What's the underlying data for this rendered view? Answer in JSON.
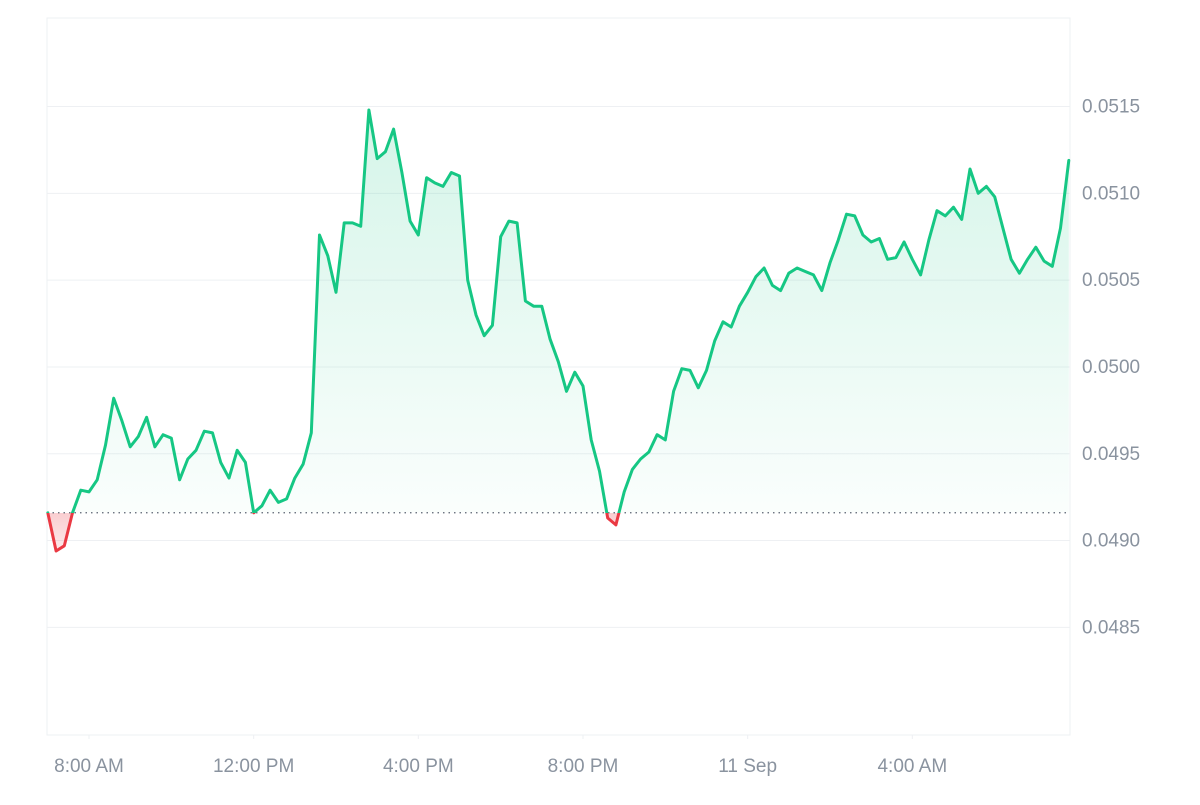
{
  "chart_data": {
    "type": "line",
    "x": [
      7.0,
      7.2,
      7.4,
      7.6,
      7.8,
      8.0,
      8.2,
      8.4,
      8.6,
      8.8,
      9.0,
      9.2,
      9.4,
      9.6,
      9.8,
      10.0,
      10.2,
      10.4,
      10.6,
      10.8,
      11.0,
      11.2,
      11.4,
      11.6,
      11.8,
      12.0,
      12.2,
      12.4,
      12.6,
      12.8,
      13.0,
      13.2,
      13.4,
      13.6,
      13.8,
      14.0,
      14.2,
      14.4,
      14.6,
      14.8,
      15.0,
      15.2,
      15.4,
      15.6,
      15.8,
      16.0,
      16.2,
      16.4,
      16.6,
      16.8,
      17.0,
      17.2,
      17.4,
      17.6,
      17.8,
      18.0,
      18.2,
      18.4,
      18.6,
      18.8,
      19.0,
      19.2,
      19.4,
      19.6,
      19.8,
      20.0,
      20.2,
      20.4,
      20.6,
      20.8,
      21.0,
      21.2,
      21.4,
      21.6,
      21.8,
      22.0,
      22.2,
      22.4,
      22.6,
      22.8,
      23.0,
      23.2,
      23.4,
      23.6,
      23.8,
      24.0,
      24.2,
      24.4,
      24.6,
      24.8,
      25.0,
      25.2,
      25.4,
      25.6,
      25.8,
      26.0,
      26.2,
      26.4,
      26.6,
      26.8,
      27.0,
      27.2,
      27.4,
      27.6,
      27.8,
      28.0,
      28.2,
      28.4,
      28.6,
      28.8,
      29.0,
      29.2,
      29.4,
      29.6,
      29.8,
      30.0,
      30.2,
      30.4,
      30.6,
      30.8,
      31.0,
      31.2,
      31.4,
      31.6,
      31.8
    ],
    "values": [
      0.04916,
      0.04894,
      0.04897,
      0.04916,
      0.04929,
      0.04928,
      0.04935,
      0.04955,
      0.04982,
      0.04969,
      0.04954,
      0.0496,
      0.04971,
      0.04954,
      0.04961,
      0.04959,
      0.04935,
      0.04947,
      0.04952,
      0.04963,
      0.04962,
      0.04945,
      0.04936,
      0.04952,
      0.04945,
      0.04916,
      0.0492,
      0.04929,
      0.04922,
      0.04924,
      0.04936,
      0.04944,
      0.04962,
      0.05076,
      0.05064,
      0.05043,
      0.05083,
      0.05083,
      0.05081,
      0.05148,
      0.0512,
      0.05124,
      0.05137,
      0.05112,
      0.05084,
      0.05076,
      0.05109,
      0.05106,
      0.05104,
      0.05112,
      0.0511,
      0.0505,
      0.0503,
      0.05018,
      0.05024,
      0.05075,
      0.05084,
      0.05083,
      0.05038,
      0.05035,
      0.05035,
      0.05016,
      0.05003,
      0.04986,
      0.04997,
      0.04989,
      0.04958,
      0.0494,
      0.04913,
      0.04909,
      0.04928,
      0.04941,
      0.04947,
      0.04951,
      0.04961,
      0.04958,
      0.04986,
      0.04999,
      0.04998,
      0.04988,
      0.04998,
      0.05015,
      0.05026,
      0.05023,
      0.05035,
      0.05043,
      0.05052,
      0.05057,
      0.05047,
      0.05044,
      0.05054,
      0.05057,
      0.05055,
      0.05053,
      0.05044,
      0.0506,
      0.05073,
      0.05088,
      0.05087,
      0.05076,
      0.05072,
      0.05074,
      0.05062,
      0.05063,
      0.05072,
      0.05062,
      0.05053,
      0.05073,
      0.0509,
      0.05087,
      0.05092,
      0.05085,
      0.05114,
      0.051,
      0.05104,
      0.05098,
      0.0508,
      0.05062,
      0.05054,
      0.05062,
      0.05069,
      0.05061,
      0.05058,
      0.0508,
      0.05119
    ],
    "up_color": "#16c784",
    "down_color": "#ea3943",
    "xlim": [
      6.98,
      31.83
    ],
    "xticks": [
      {
        "value": 8,
        "label": "8:00 AM"
      },
      {
        "value": 12,
        "label": "12:00 PM"
      },
      {
        "value": 16,
        "label": "4:00 PM"
      },
      {
        "value": 20,
        "label": "8:00 PM"
      },
      {
        "value": 24,
        "label": "11 Sep"
      },
      {
        "value": 28,
        "label": "4:00 AM"
      }
    ],
    "ylim": [
      0.04788,
      0.05201
    ],
    "yticks": [
      0.0485,
      {
        "value": 0.049,
        "label": "0.0490"
      },
      0.0495,
      {
        "value": 0.05,
        "label": "0.0500"
      },
      0.0505,
      {
        "value": 0.051,
        "label": "0.0510"
      },
      0.0515
    ],
    "grid": true
  }
}
